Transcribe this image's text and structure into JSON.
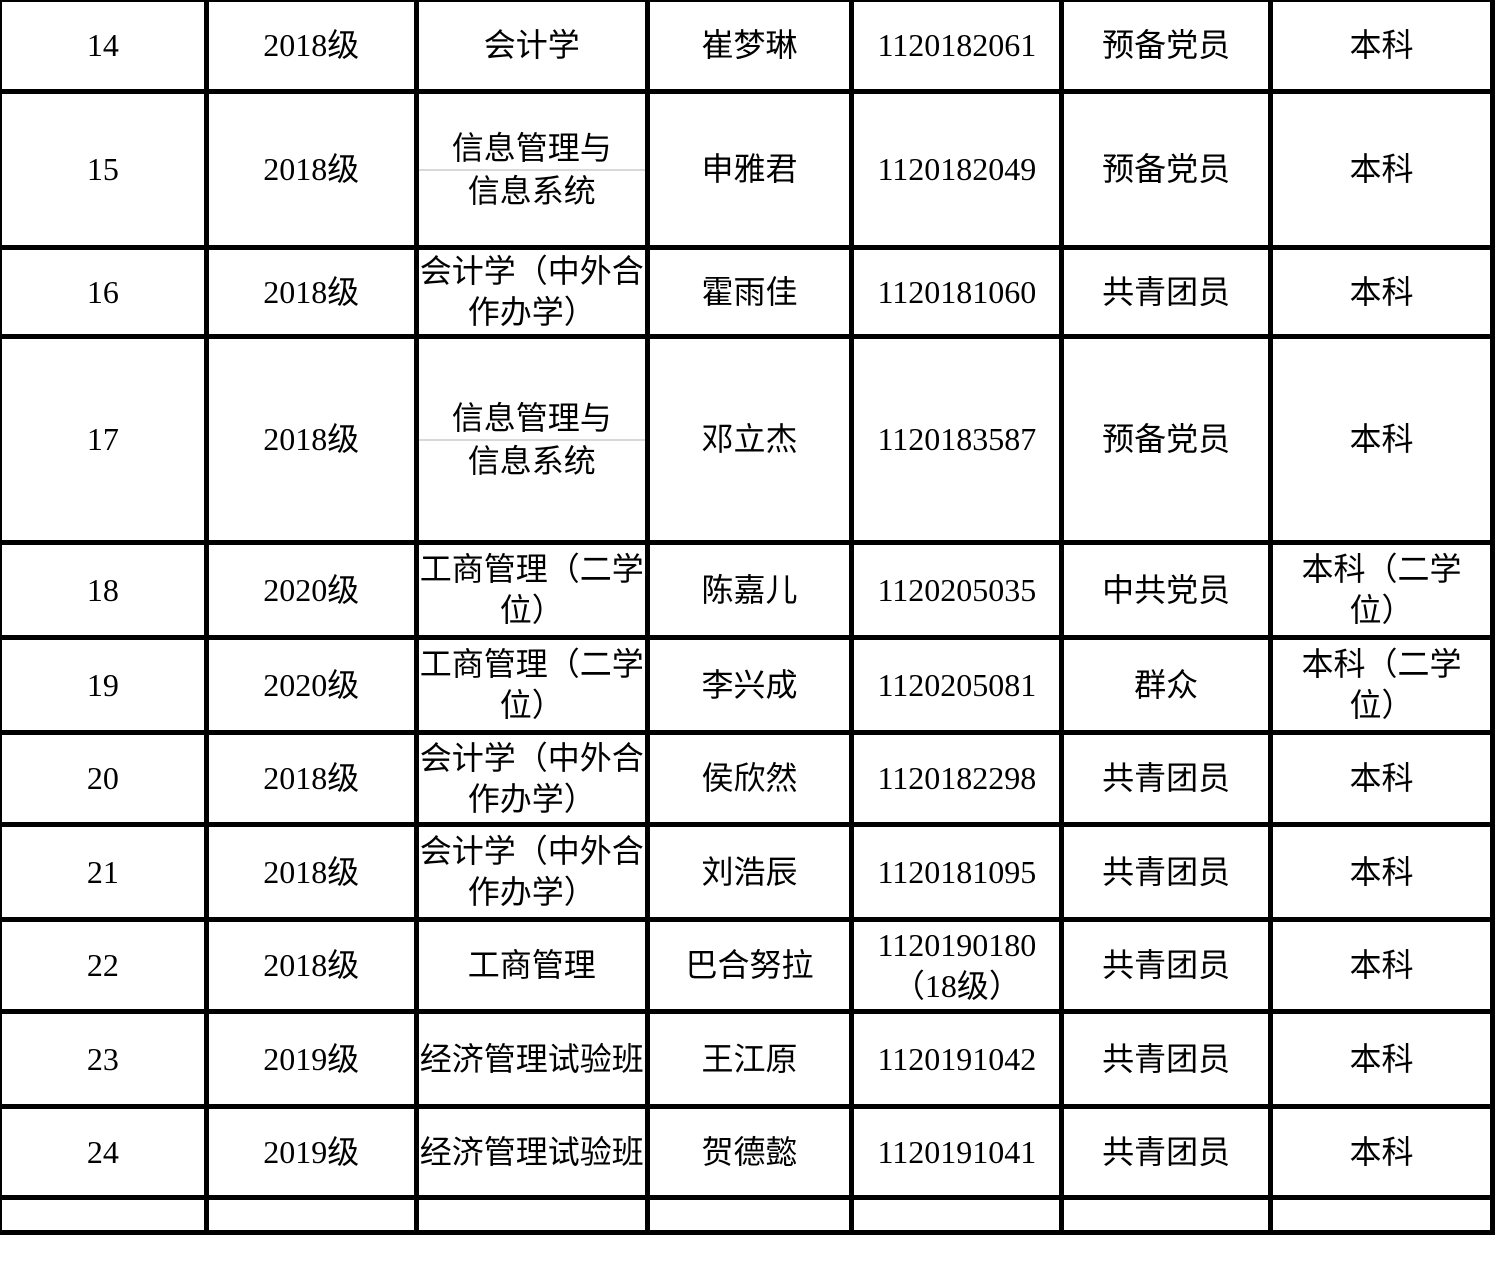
{
  "table": {
    "description_name": "student-roster-table",
    "rows": [
      {
        "no": [
          "14"
        ],
        "grade": [
          "2018级"
        ],
        "major": [
          "会计学"
        ],
        "name": [
          "崔梦琳"
        ],
        "student_id": [
          "1120182061"
        ],
        "political_status": [
          "预备党员"
        ],
        "degree": [
          "本科"
        ]
      },
      {
        "no": [
          "15"
        ],
        "grade": [
          "2018级"
        ],
        "major": [
          "信息管理与",
          "信息系统"
        ],
        "major_divider": true,
        "name": [
          "申雅君"
        ],
        "student_id": [
          "1120182049"
        ],
        "political_status": [
          "预备党员"
        ],
        "degree": [
          "本科"
        ]
      },
      {
        "no": [
          "16"
        ],
        "grade": [
          "2018级"
        ],
        "major": [
          "会计学（中外合",
          "作办学）"
        ],
        "name": [
          "霍雨佳"
        ],
        "student_id": [
          "1120181060"
        ],
        "political_status": [
          "共青团员"
        ],
        "degree": [
          "本科"
        ]
      },
      {
        "no": [
          "17"
        ],
        "grade": [
          "2018级"
        ],
        "major": [
          "信息管理与",
          "信息系统"
        ],
        "major_divider": true,
        "name": [
          "邓立杰"
        ],
        "student_id": [
          "1120183587"
        ],
        "political_status": [
          "预备党员"
        ],
        "degree": [
          "本科"
        ]
      },
      {
        "no": [
          "18"
        ],
        "grade": [
          "2020级"
        ],
        "major": [
          "工商管理（二学",
          "位）"
        ],
        "name": [
          "陈嘉儿"
        ],
        "student_id": [
          "1120205035"
        ],
        "political_status": [
          "中共党员"
        ],
        "degree": [
          "本科（二学",
          "位）"
        ]
      },
      {
        "no": [
          "19"
        ],
        "grade": [
          "2020级"
        ],
        "major": [
          "工商管理（二学",
          "位）"
        ],
        "name": [
          "李兴成"
        ],
        "student_id": [
          "1120205081"
        ],
        "political_status": [
          "群众"
        ],
        "degree": [
          "本科（二学",
          "位）"
        ]
      },
      {
        "no": [
          "20"
        ],
        "grade": [
          "2018级"
        ],
        "major": [
          "会计学（中外合",
          "作办学）"
        ],
        "name": [
          "侯欣然"
        ],
        "student_id": [
          "1120182298"
        ],
        "political_status": [
          "共青团员"
        ],
        "degree": [
          "本科"
        ]
      },
      {
        "no": [
          "21"
        ],
        "grade": [
          "2018级"
        ],
        "major": [
          "会计学（中外合",
          "作办学）"
        ],
        "name": [
          "刘浩辰"
        ],
        "student_id": [
          "1120181095"
        ],
        "political_status": [
          "共青团员"
        ],
        "degree": [
          "本科"
        ]
      },
      {
        "no": [
          "22"
        ],
        "grade": [
          "2018级"
        ],
        "major": [
          "工商管理"
        ],
        "name": [
          "巴合努拉"
        ],
        "student_id": [
          "1120190180",
          "（18级）"
        ],
        "political_status": [
          "共青团员"
        ],
        "degree": [
          "本科"
        ]
      },
      {
        "no": [
          "23"
        ],
        "grade": [
          "2019级"
        ],
        "major": [
          "经济管理试验班"
        ],
        "name": [
          "王江原"
        ],
        "student_id": [
          "1120191042"
        ],
        "political_status": [
          "共青团员"
        ],
        "degree": [
          "本科"
        ]
      },
      {
        "no": [
          "24"
        ],
        "grade": [
          "2019级"
        ],
        "major": [
          "经济管理试验班"
        ],
        "name": [
          "贺德懿"
        ],
        "student_id": [
          "1120191041"
        ],
        "political_status": [
          "共青团员"
        ],
        "degree": [
          "本科"
        ]
      },
      {
        "no": [],
        "grade": [],
        "major": [],
        "name": [],
        "student_id": [],
        "political_status": [],
        "degree": [],
        "partial": true
      }
    ]
  },
  "colors": {
    "border": "#000000",
    "inner_divider": "#d8d8d8",
    "background": "#ffffff",
    "text": "#000000"
  }
}
